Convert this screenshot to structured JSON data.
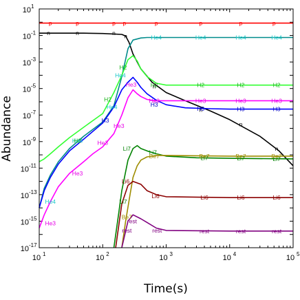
{
  "chart_data": {
    "type": "line",
    "xlabel": "Time(s)",
    "ylabel": "Abundance",
    "xscale": "log",
    "yscale": "log",
    "xlim": [
      10,
      100000
    ],
    "ylim": [
      1e-17,
      10
    ],
    "x_ticks": [
      {
        "base": "10",
        "exp": "1"
      },
      {
        "base": "10",
        "exp": "2"
      },
      {
        "base": "10",
        "exp": "3"
      },
      {
        "base": "10",
        "exp": "4"
      },
      {
        "base": "10",
        "exp": "5"
      }
    ],
    "y_ticks": [
      {
        "base": "10",
        "exp": "1"
      },
      {
        "base": "10",
        "exp": "-1"
      },
      {
        "base": "10",
        "exp": "-3"
      },
      {
        "base": "10",
        "exp": "-5"
      },
      {
        "base": "10",
        "exp": "-7"
      },
      {
        "base": "10",
        "exp": "-9"
      },
      {
        "base": "10",
        "exp": "-11"
      },
      {
        "base": "10",
        "exp": "-13"
      },
      {
        "base": "10",
        "exp": "-15"
      },
      {
        "base": "10",
        "exp": "-17"
      }
    ],
    "series": [
      {
        "name": "p",
        "color": "#ff0000",
        "points": [
          [
            10,
            0.85
          ],
          [
            100,
            0.85
          ],
          [
            300,
            0.85
          ],
          [
            1000,
            0.85
          ],
          [
            10000,
            0.85
          ],
          [
            100000,
            0.85
          ]
        ],
        "labels": [
          [
            15,
            0.85
          ],
          [
            40,
            0.85
          ],
          [
            150,
            0.85
          ],
          [
            220,
            0.85
          ],
          [
            700,
            0.85
          ],
          [
            3500,
            0.85
          ],
          [
            15000,
            0.85
          ],
          [
            50000,
            0.85
          ]
        ]
      },
      {
        "name": "n",
        "color": "#000000",
        "points": [
          [
            10,
            0.15
          ],
          [
            50,
            0.15
          ],
          [
            100,
            0.14
          ],
          [
            200,
            0.12
          ],
          [
            230,
            0.09
          ],
          [
            260,
            0.03
          ],
          [
            300,
            0.004
          ],
          [
            400,
            0.0003
          ],
          [
            600,
            3e-05
          ],
          [
            1000,
            5e-06
          ],
          [
            2000,
            1.2e-06
          ],
          [
            5000,
            2e-07
          ],
          [
            10000,
            4.5e-08
          ],
          [
            30000,
            2.5e-09
          ],
          [
            60000,
            2e-10
          ],
          [
            100000,
            1.5e-11
          ]
        ],
        "labels": [
          [
            14,
            0.15
          ],
          [
            40,
            0.15
          ],
          [
            150,
            0.15
          ],
          [
            230,
            0.09
          ],
          [
            650,
            1.5e-05
          ],
          [
            3500,
            2.5e-07
          ],
          [
            15000,
            2e-08
          ],
          [
            55000,
            3e-10
          ]
        ]
      },
      {
        "name": "He4",
        "color": "#008b8b",
        "label_color": "#19c8c8",
        "points": [
          [
            10,
            1e-14
          ],
          [
            12,
            3e-13
          ],
          [
            15,
            3e-12
          ],
          [
            20,
            3e-11
          ],
          [
            30,
            3e-10
          ],
          [
            50,
            2.5e-09
          ],
          [
            100,
            3e-08
          ],
          [
            150,
            5e-07
          ],
          [
            200,
            8e-05
          ],
          [
            250,
            0.01
          ],
          [
            300,
            0.045
          ],
          [
            400,
            0.065
          ],
          [
            500,
            0.07
          ],
          [
            1000,
            0.07
          ],
          [
            10000,
            0.07
          ],
          [
            100000,
            0.07
          ]
        ],
        "labels": [
          [
            15,
            3e-14
          ],
          [
            40,
            1.2e-09
          ],
          [
            140,
            4e-07
          ],
          [
            190,
            0.0001
          ],
          [
            700,
            0.07
          ],
          [
            3500,
            0.07
          ],
          [
            15000,
            0.07
          ],
          [
            55000,
            0.07
          ]
        ]
      },
      {
        "name": "H2",
        "color": "#32ff32",
        "label_color": "#19b419",
        "points": [
          [
            10,
            3e-11
          ],
          [
            12,
            5e-11
          ],
          [
            15,
            1.2e-10
          ],
          [
            20,
            4e-10
          ],
          [
            30,
            2e-09
          ],
          [
            50,
            1.2e-08
          ],
          [
            100,
            1.3e-07
          ],
          [
            150,
            5e-06
          ],
          [
            200,
            0.0001
          ],
          [
            250,
            0.0015
          ],
          [
            300,
            0.003
          ],
          [
            350,
            0.0012
          ],
          [
            400,
            0.0003
          ],
          [
            500,
            8e-05
          ],
          [
            700,
            2.5e-05
          ],
          [
            1000,
            1.8e-05
          ],
          [
            10000,
            1.8e-05
          ],
          [
            100000,
            1.8e-05
          ]
        ],
        "labels": [
          [
            40,
            1.2e-09
          ],
          [
            120,
            1.5e-06
          ],
          [
            210,
            0.0004
          ],
          [
            650,
            1.8e-05
          ],
          [
            3500,
            1.8e-05
          ],
          [
            15000,
            1.8e-05
          ],
          [
            55000,
            1.8e-05
          ]
        ]
      },
      {
        "name": "H3",
        "color": "#0000ff",
        "label_color": "#0000c8",
        "points": [
          [
            10,
            1e-14
          ],
          [
            12,
            2e-13
          ],
          [
            15,
            2e-12
          ],
          [
            20,
            2e-11
          ],
          [
            30,
            2e-10
          ],
          [
            50,
            1.5e-09
          ],
          [
            100,
            2.5e-08
          ],
          [
            150,
            4e-07
          ],
          [
            200,
            8e-06
          ],
          [
            250,
            3e-05
          ],
          [
            300,
            7e-05
          ],
          [
            350,
            3e-05
          ],
          [
            400,
            1.2e-05
          ],
          [
            500,
            4e-06
          ],
          [
            700,
            1.3e-06
          ],
          [
            1000,
            6e-07
          ],
          [
            2000,
            3.5e-07
          ],
          [
            5000,
            3e-07
          ],
          [
            10000,
            2.8e-07
          ],
          [
            100000,
            2.8e-07
          ]
        ],
        "labels": [
          [
            110,
            4e-08
          ],
          [
            650,
            6e-07
          ],
          [
            3500,
            3e-07
          ],
          [
            15000,
            2.8e-07
          ],
          [
            55000,
            2.8e-07
          ]
        ]
      },
      {
        "name": "He3",
        "color": "#ff00ff",
        "label_color": "#e600e6",
        "points": [
          [
            10,
            3e-16
          ],
          [
            12,
            3e-15
          ],
          [
            15,
            3e-14
          ],
          [
            20,
            4e-13
          ],
          [
            30,
            4e-12
          ],
          [
            50,
            3e-11
          ],
          [
            70,
            1.2e-10
          ],
          [
            100,
            4e-10
          ],
          [
            150,
            4e-09
          ],
          [
            200,
            1e-07
          ],
          [
            250,
            2e-06
          ],
          [
            300,
            8e-06
          ],
          [
            350,
            4e-06
          ],
          [
            400,
            2.5e-06
          ],
          [
            500,
            1.5e-06
          ],
          [
            600,
            1.3e-06
          ],
          [
            700,
            1.2e-06
          ],
          [
            1000,
            1.2e-06
          ],
          [
            10000,
            1.2e-06
          ],
          [
            100000,
            1.2e-06
          ]
        ],
        "labels": [
          [
            15,
            7e-16
          ],
          [
            40,
            4e-12
          ],
          [
            100,
            8e-10
          ],
          [
            180,
            1.5e-08
          ],
          [
            280,
            2e-05
          ],
          [
            650,
            1.2e-06
          ],
          [
            3500,
            1.2e-06
          ],
          [
            15000,
            1.2e-06
          ],
          [
            55000,
            1.2e-06
          ]
        ]
      },
      {
        "name": "Li7",
        "color": "#008200",
        "label_color": "#008200",
        "points": [
          [
            150,
            1e-17
          ],
          [
            180,
            5e-15
          ],
          [
            200,
            2e-13
          ],
          [
            250,
            4e-11
          ],
          [
            300,
            3e-10
          ],
          [
            350,
            5e-10
          ],
          [
            400,
            3e-10
          ],
          [
            500,
            2e-10
          ],
          [
            700,
            1.2e-10
          ],
          [
            1000,
            8e-11
          ],
          [
            3000,
            6e-11
          ],
          [
            10000,
            5.5e-11
          ],
          [
            100000,
            5e-11
          ]
        ],
        "labels": [
          [
            210,
            3e-14
          ],
          [
            240,
            3e-10
          ],
          [
            620,
            1.5e-10
          ],
          [
            4000,
            6e-11
          ],
          [
            15000,
            5.5e-11
          ],
          [
            55000,
            5e-11
          ]
        ]
      },
      {
        "name": "Be7",
        "color": "#9e8c00",
        "label_color": "#9e8c00",
        "points": [
          [
            200,
            1e-17
          ],
          [
            230,
            1e-15
          ],
          [
            270,
            1e-13
          ],
          [
            300,
            2e-12
          ],
          [
            350,
            1.5e-11
          ],
          [
            400,
            4e-11
          ],
          [
            500,
            7e-11
          ],
          [
            700,
            9e-11
          ],
          [
            1000,
            9e-11
          ],
          [
            10000,
            8e-11
          ],
          [
            100000,
            8e-11
          ]
        ],
        "labels": [
          [
            240,
            2e-15
          ],
          [
            650,
            8e-11
          ],
          [
            4000,
            8e-11
          ],
          [
            15000,
            8e-11
          ],
          [
            55000,
            8e-11
          ]
        ]
      },
      {
        "name": "Li6",
        "color": "#8b0000",
        "label_color": "#8b0000",
        "points": [
          [
            160,
            1e-17
          ],
          [
            200,
            2e-14
          ],
          [
            250,
            5e-13
          ],
          [
            300,
            1e-12
          ],
          [
            400,
            6e-13
          ],
          [
            500,
            2e-13
          ],
          [
            700,
            1e-13
          ],
          [
            1000,
            7e-14
          ],
          [
            10000,
            6e-14
          ],
          [
            100000,
            6e-14
          ]
        ],
        "labels": [
          [
            230,
            1e-12
          ],
          [
            680,
            8e-14
          ],
          [
            4000,
            6e-14
          ],
          [
            15000,
            6e-14
          ],
          [
            55000,
            6e-14
          ]
        ]
      },
      {
        "name": "rest",
        "color": "#800080",
        "label_color": "#800080",
        "points": [
          [
            200,
            1e-17
          ],
          [
            250,
            1e-15
          ],
          [
            300,
            3e-15
          ],
          [
            400,
            1.5e-15
          ],
          [
            500,
            8e-16
          ],
          [
            700,
            3e-16
          ],
          [
            1000,
            2e-16
          ],
          [
            10000,
            1.8e-16
          ],
          [
            100000,
            1.8e-16
          ]
        ],
        "labels": [
          [
            240,
            2e-16
          ],
          [
            290,
            1e-15
          ],
          [
            720,
            2e-16
          ],
          [
            4000,
            1.8e-16
          ],
          [
            15000,
            1.8e-16
          ],
          [
            55000,
            1.8e-16
          ]
        ]
      }
    ]
  }
}
